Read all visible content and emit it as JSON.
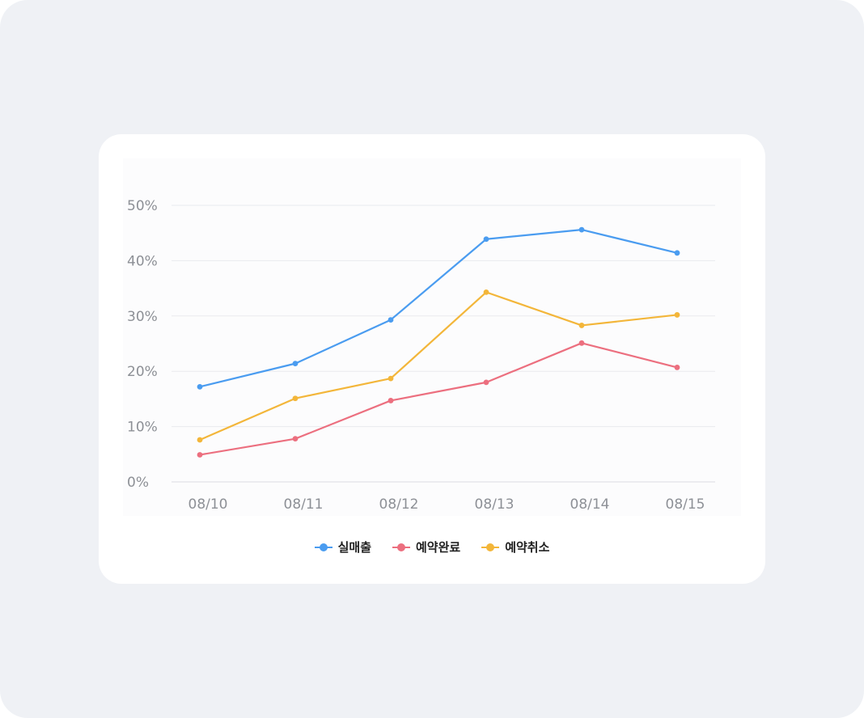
{
  "chart_data": {
    "type": "line",
    "categories": [
      "08/10",
      "08/11",
      "08/12",
      "08/13",
      "08/14",
      "08/15"
    ],
    "ylim": [
      0,
      50
    ],
    "yticks": [
      0,
      10,
      20,
      30,
      40,
      50
    ],
    "ytick_labels": [
      "0%",
      "10%",
      "20%",
      "30%",
      "40%",
      "50%"
    ],
    "grid": true,
    "legend_position": "bottom-center",
    "series": [
      {
        "name": "실매출",
        "color": "#4a9cf0",
        "values": [
          17.2,
          21.4,
          29.3,
          43.9,
          45.6,
          41.4
        ]
      },
      {
        "name": "예약완료",
        "color": "#ec6f7f",
        "values": [
          4.9,
          7.8,
          14.7,
          18.0,
          25.1,
          20.7
        ]
      },
      {
        "name": "예약취소",
        "color": "#f3b63a",
        "values": [
          7.6,
          15.1,
          18.7,
          34.3,
          28.3,
          30.2
        ]
      }
    ]
  }
}
